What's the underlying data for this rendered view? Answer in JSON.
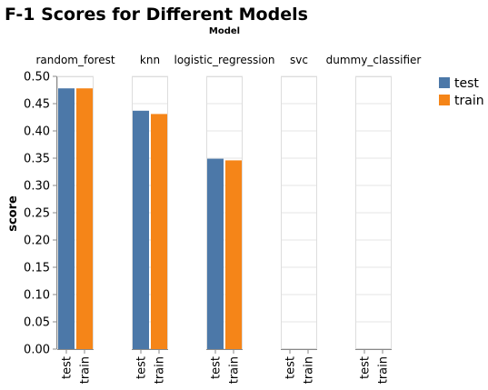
{
  "chart_data": {
    "type": "bar",
    "title": "F-1 Scores for Different Models",
    "facet_title": "Model",
    "ylabel": "score",
    "xlabel": "",
    "ylim": [
      0,
      0.5
    ],
    "yticks": [
      "0.00",
      "0.05",
      "0.10",
      "0.15",
      "0.20",
      "0.25",
      "0.30",
      "0.35",
      "0.40",
      "0.45",
      "0.50"
    ],
    "grid": true,
    "legend_position": "top-right",
    "categories": [
      "test",
      "train"
    ],
    "facets": [
      {
        "name": "random_forest",
        "values": [
          0.478,
          0.478
        ]
      },
      {
        "name": "knn",
        "values": [
          0.437,
          0.431
        ]
      },
      {
        "name": "logistic_regression",
        "values": [
          0.349,
          0.346
        ]
      },
      {
        "name": "svc",
        "values": [
          0.0,
          0.0
        ]
      },
      {
        "name": "dummy_classifier",
        "values": [
          0.0,
          0.0
        ]
      }
    ],
    "series": [
      {
        "name": "test",
        "color": "#4c78a8"
      },
      {
        "name": "train",
        "color": "#f58518"
      }
    ]
  }
}
